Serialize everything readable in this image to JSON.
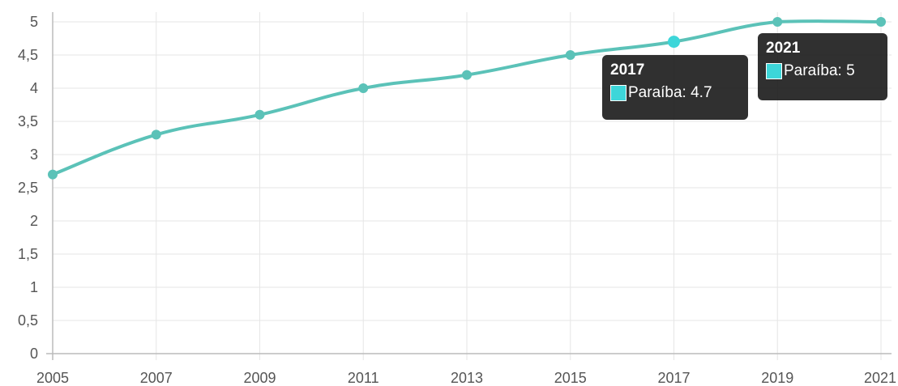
{
  "chart_data": {
    "type": "line",
    "title": "",
    "xlabel": "",
    "ylabel": "",
    "categories": [
      "2005",
      "2007",
      "2009",
      "2011",
      "2013",
      "2015",
      "2017",
      "2019",
      "2021"
    ],
    "series": [
      {
        "name": "Paraíba",
        "values": [
          2.7,
          3.3,
          3.6,
          4.0,
          4.2,
          4.5,
          4.7,
          5.0,
          5.0
        ]
      }
    ],
    "y_ticks": [
      "0",
      "0,5",
      "1",
      "1,5",
      "2",
      "2,5",
      "3",
      "3,5",
      "4",
      "4,5",
      "5"
    ],
    "ylim": [
      0,
      5
    ],
    "grid": true,
    "colors": {
      "line": "#5bc2b8",
      "marker": "#5bc2b8",
      "highlight_marker": "#3dd6d9",
      "swatch": "#3dd6d9",
      "grid": "#e6e6e6",
      "axis": "#bbbbbb"
    },
    "tooltips": [
      {
        "title": "2017",
        "series_label": "Paraíba: 4.7"
      },
      {
        "title": "2021",
        "series_label": "Paraíba: 5"
      }
    ]
  }
}
